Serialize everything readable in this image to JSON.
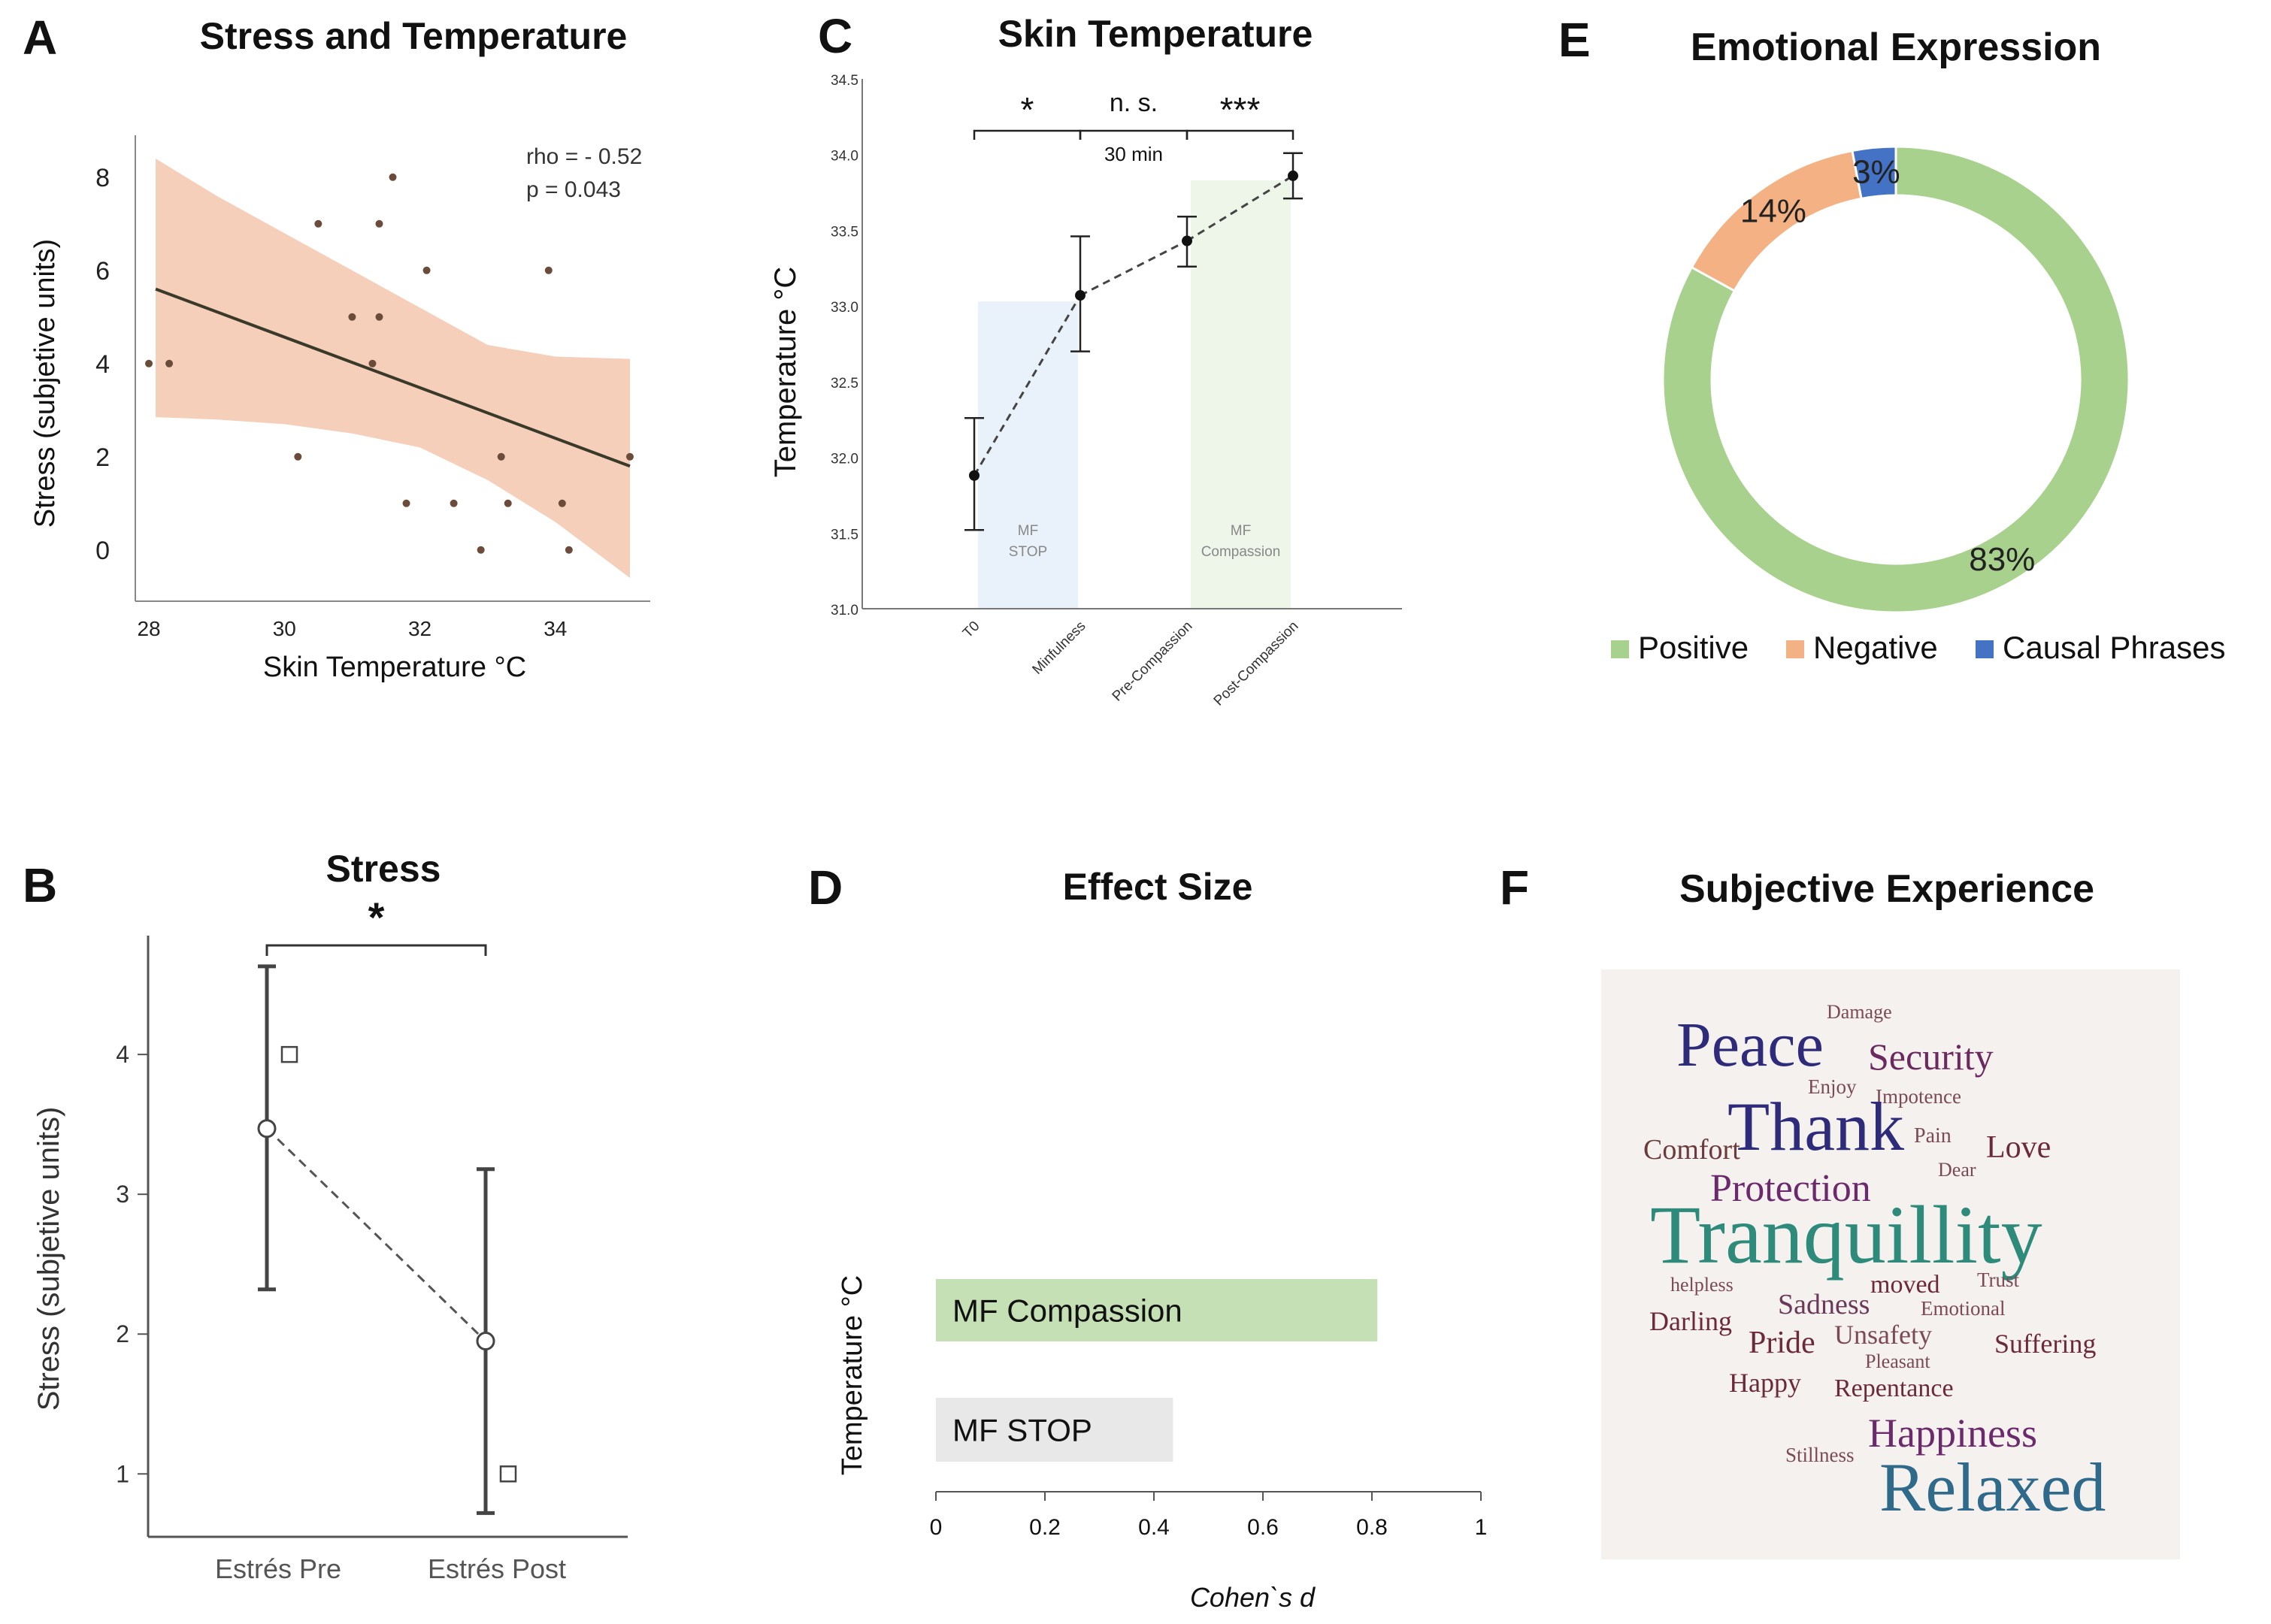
{
  "chart_data": [
    {
      "panel": "A",
      "type": "scatter",
      "title": "Stress and Temperature",
      "xlabel": "Skin Temperature °C",
      "ylabel": "Stress (subjetive units)",
      "xlim": [
        27.8,
        35.4
      ],
      "ylim": [
        -1.1,
        8.9
      ],
      "xticks": [
        28,
        30,
        32,
        34
      ],
      "yticks": [
        0,
        2,
        4,
        6,
        8
      ],
      "annotation": [
        "rho = - 0.52",
        "p = 0.043"
      ],
      "points": [
        [
          28.0,
          4
        ],
        [
          28.3,
          4
        ],
        [
          30.2,
          2
        ],
        [
          30.5,
          7
        ],
        [
          31.0,
          5
        ],
        [
          31.3,
          4
        ],
        [
          31.4,
          7
        ],
        [
          31.4,
          5
        ],
        [
          31.6,
          8
        ],
        [
          31.8,
          1
        ],
        [
          32.1,
          6
        ],
        [
          32.5,
          1
        ],
        [
          32.9,
          0
        ],
        [
          33.2,
          2
        ],
        [
          33.3,
          1
        ],
        [
          33.9,
          6
        ],
        [
          34.1,
          1
        ],
        [
          34.2,
          0
        ],
        [
          35.1,
          2
        ]
      ],
      "fit_line": [
        [
          28.1,
          5.6
        ],
        [
          35.1,
          1.8
        ]
      ],
      "ci_upper": [
        [
          28.1,
          8.4
        ],
        [
          29,
          7.6
        ],
        [
          30,
          6.8
        ],
        [
          31,
          6.0
        ],
        [
          32,
          5.2
        ],
        [
          33,
          4.4
        ],
        [
          34,
          4.15
        ],
        [
          35.1,
          4.1
        ]
      ],
      "ci_lower": [
        [
          28.1,
          2.85
        ],
        [
          29,
          2.8
        ],
        [
          30,
          2.7
        ],
        [
          31,
          2.5
        ],
        [
          32,
          2.2
        ],
        [
          33,
          1.5
        ],
        [
          34,
          0.6
        ],
        [
          35.1,
          -0.6
        ]
      ],
      "colors": {
        "band": "#f5cfba",
        "line": "#3a3a2a",
        "point": "#6b4c3b"
      }
    },
    {
      "panel": "B",
      "type": "line",
      "title": "Stress",
      "ylabel": "Stress (subjetive units)",
      "categories": [
        "Estrés Pre",
        "Estrés Post"
      ],
      "ylim": [
        0.55,
        4.85
      ],
      "yticks": [
        1,
        2,
        3,
        4
      ],
      "means": [
        3.47,
        1.95
      ],
      "error_low": [
        2.32,
        0.72
      ],
      "error_high": [
        4.63,
        3.18
      ],
      "medians": [
        4,
        1
      ],
      "significance": "*"
    },
    {
      "panel": "C",
      "type": "line",
      "title": "Skin Temperature",
      "ylabel": "Temperature  °C",
      "categories": [
        "T0",
        "Minfulness",
        "Pre-Compassion",
        "Post-Compassion"
      ],
      "ylim": [
        31.0,
        34.5
      ],
      "yticks": [
        "31.0",
        "31.5",
        "32.0",
        "32.5",
        "33.0",
        "33.5",
        "34.0",
        "34.5"
      ],
      "means": [
        31.88,
        33.07,
        33.43,
        33.86
      ],
      "error_low": [
        31.52,
        32.7,
        33.26,
        33.71
      ],
      "error_high": [
        32.26,
        33.46,
        33.59,
        34.01
      ],
      "boxes": [
        {
          "label_line1": "MF",
          "label_line2": "STOP",
          "from": 0,
          "to": 1,
          "top": 33.03,
          "color": "#e9f1fa"
        },
        {
          "label_line1": "MF",
          "label_line2": "Compassion",
          "from": 2,
          "to": 3,
          "top": 33.83,
          "color": "#eef6ea"
        }
      ],
      "brackets": [
        {
          "from": 0,
          "to": 1,
          "label": "*"
        },
        {
          "from": 1,
          "to": 2,
          "label": "n. s.",
          "sublabel": "30 min"
        },
        {
          "from": 2,
          "to": 3,
          "label": "***"
        }
      ]
    },
    {
      "panel": "D",
      "type": "bar",
      "title": "Effect Size",
      "xlabel": "Cohen`s  d",
      "ylabel": "Temperature °C",
      "xlim": [
        0,
        1
      ],
      "xticks": [
        "0",
        "0.2",
        "0.4",
        "0.6",
        "0.8",
        "1"
      ],
      "categories": [
        "MF Compassion",
        "MF STOP"
      ],
      "values": [
        0.81,
        0.435
      ],
      "colors": [
        "#c5e0b4",
        "#e8e8e8"
      ]
    },
    {
      "panel": "E",
      "type": "pie",
      "title": "Emotional Expression",
      "categories": [
        "Positive",
        "Negative",
        "Causal Phrases"
      ],
      "values": [
        83,
        14,
        3
      ],
      "labels": [
        "83%",
        "14%",
        "3%"
      ],
      "colors": [
        "#a9d18e",
        "#f4b183",
        "#4472c4"
      ],
      "legend": "bottom"
    }
  ],
  "panel_letters": {
    "a": "A",
    "b": "B",
    "c": "C",
    "d": "D",
    "e": "E",
    "f": "F"
  },
  "wordcloud": {
    "title": "Subjective Experience",
    "background": "#f5f1ee",
    "words": [
      {
        "text": "Damage",
        "color": "#7a4a55"
      },
      {
        "text": "Peace",
        "color": "#2e2c7a"
      },
      {
        "text": "Security",
        "color": "#6b2a5f"
      },
      {
        "text": "Enjoy",
        "color": "#7a4a55"
      },
      {
        "text": "Impotence",
        "color": "#7a4a55"
      },
      {
        "text": "Thank",
        "color": "#2e2c7a"
      },
      {
        "text": "Comfort",
        "color": "#6b3a3a"
      },
      {
        "text": "Pain",
        "color": "#7a4a55"
      },
      {
        "text": "Love",
        "color": "#6b2a3a"
      },
      {
        "text": "Dear",
        "color": "#7a4a55"
      },
      {
        "text": "Protection",
        "color": "#6b2a6b"
      },
      {
        "text": "Tranquillity",
        "color": "#2e8a7a"
      },
      {
        "text": "helpless",
        "color": "#7a4a55"
      },
      {
        "text": "moved",
        "color": "#6b2a3a"
      },
      {
        "text": "Trust",
        "color": "#7a4a55"
      },
      {
        "text": "Sadness",
        "color": "#6b3a5a"
      },
      {
        "text": "Emotional",
        "color": "#7a4a55"
      },
      {
        "text": "Darling",
        "color": "#6b2a3a"
      },
      {
        "text": "Pride",
        "color": "#6b2a3a"
      },
      {
        "text": "Unsafety",
        "color": "#7a4a55"
      },
      {
        "text": "Suffering",
        "color": "#6b2a3a"
      },
      {
        "text": "Pleasant",
        "color": "#7a4a55"
      },
      {
        "text": "Happy",
        "color": "#6b2a3a"
      },
      {
        "text": "Repentance",
        "color": "#6b2a3a"
      },
      {
        "text": "Happiness",
        "color": "#6b2a6b"
      },
      {
        "text": "Stillness",
        "color": "#7a4a55"
      },
      {
        "text": "Relaxed",
        "color": "#2f6a8a"
      }
    ]
  }
}
